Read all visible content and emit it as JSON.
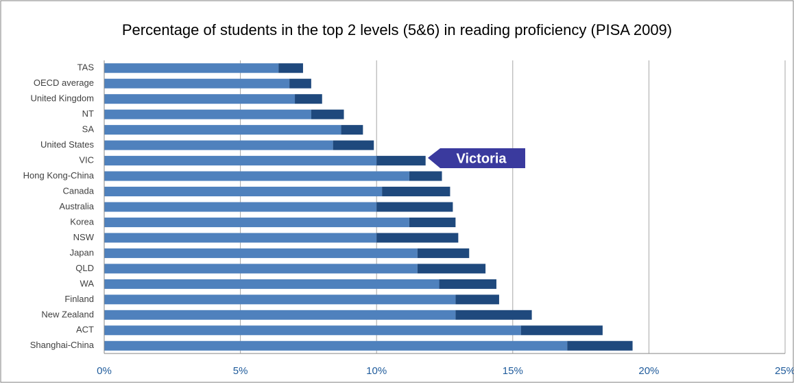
{
  "chart_data": {
    "type": "stacked_bar_horizontal",
    "title": "Percentage of students in the top 2 levels (5&6) in reading proficiency (PISA 2009)",
    "annotation": "Victoria",
    "categories": [
      "TAS",
      "OECD average",
      "United Kingdom",
      "NT",
      "SA",
      "United States",
      "VIC",
      "Hong Kong-China",
      "Canada",
      "Australia",
      "Korea",
      "NSW",
      "Japan",
      "QLD",
      "WA",
      "Finland",
      "New Zealand",
      "ACT",
      "Shanghai-China"
    ],
    "series": [
      {
        "color": "#4f81bd",
        "values": [
          6.4,
          6.8,
          7.0,
          7.6,
          8.7,
          8.4,
          10.0,
          11.2,
          10.2,
          10.0,
          11.2,
          10.0,
          11.5,
          11.5,
          12.3,
          12.9,
          12.9,
          15.3,
          17.0
        ]
      },
      {
        "color": "#1f497d",
        "values": [
          0.9,
          0.8,
          1.0,
          1.2,
          0.8,
          1.5,
          1.8,
          1.2,
          2.5,
          2.8,
          1.7,
          3.0,
          1.9,
          2.5,
          2.1,
          1.6,
          2.8,
          3.0,
          2.4
        ]
      }
    ],
    "xlim": [
      0,
      25
    ],
    "xticks": [
      {
        "value": 0,
        "label": "0%"
      },
      {
        "value": 5,
        "label": "5%"
      },
      {
        "value": 10,
        "label": "10%"
      },
      {
        "value": 15,
        "label": "15%"
      },
      {
        "value": 20,
        "label": "20%"
      },
      {
        "value": 25,
        "label": "25%"
      }
    ],
    "grid": true
  }
}
